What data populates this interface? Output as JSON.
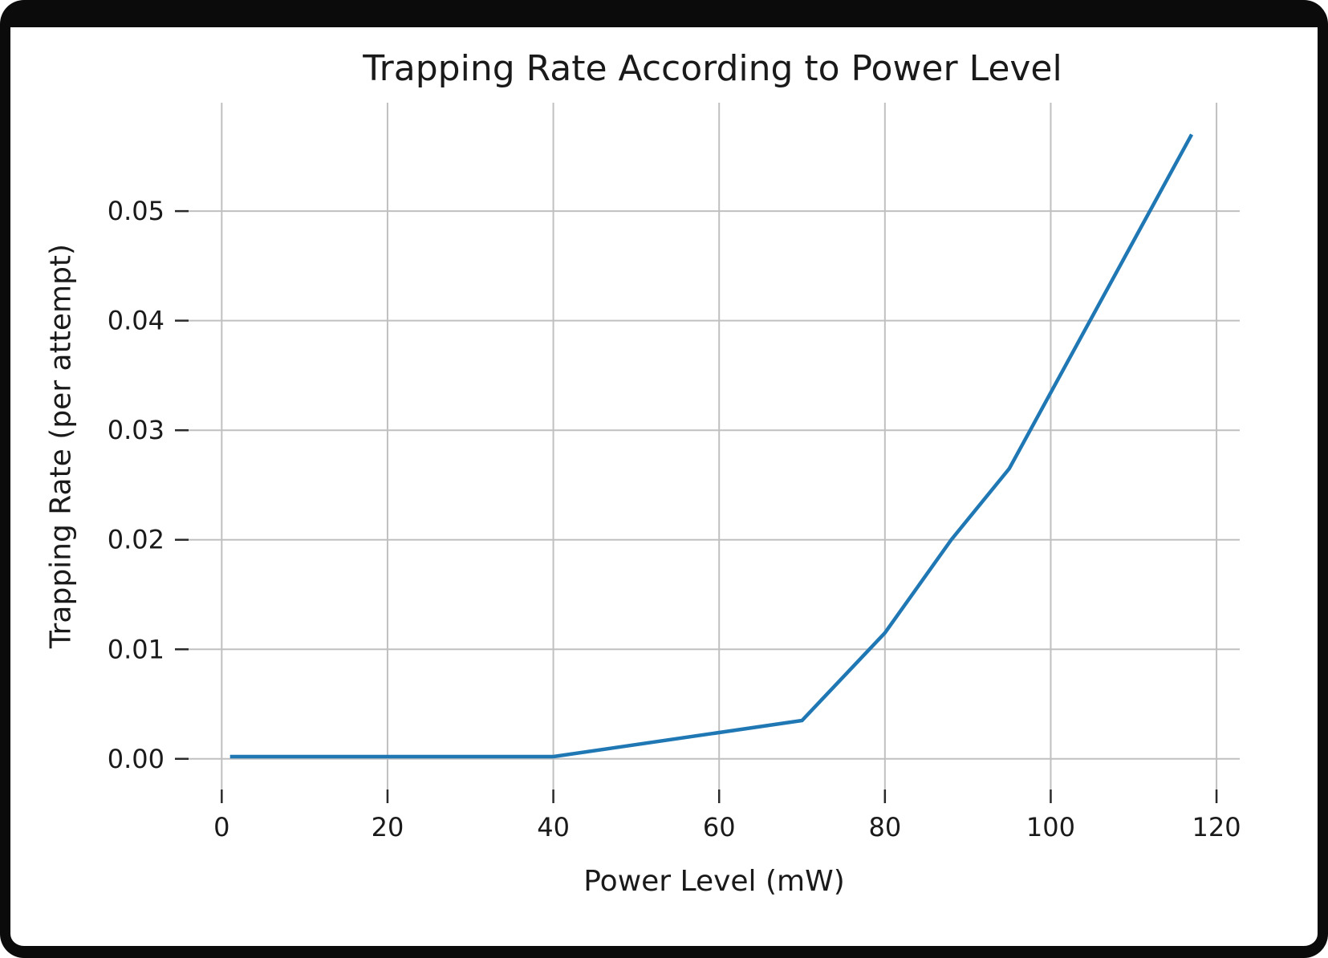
{
  "figure": {
    "background": "#ffffff",
    "border_color": "#0b0b0b"
  },
  "chart_data": {
    "type": "line",
    "title": "Trapping Rate According to Power Level",
    "xlabel": "Power Level (mW)",
    "ylabel": "Trapping Rate (per attempt)",
    "x_tick_labels": [
      "0",
      "20",
      "40",
      "60",
      "80",
      "100",
      "120"
    ],
    "x_ticks": [
      0,
      20,
      40,
      60,
      80,
      100,
      120
    ],
    "y_tick_labels": [
      "0.00",
      "0.01",
      "0.02",
      "0.03",
      "0.04",
      "0.05"
    ],
    "y_ticks": [
      0.0,
      0.01,
      0.02,
      0.03,
      0.04,
      0.05
    ],
    "xlim": [
      -4.0,
      122.8
    ],
    "ylim": [
      -0.0028,
      0.0599
    ],
    "grid": true,
    "grid_color": "#c0c0c0",
    "tick_color": "#2a2a2a",
    "legend_position": "none",
    "series": [
      {
        "name": "trapping_rate",
        "color": "#1f77b4",
        "line_width": 4.5,
        "points": [
          [
            1,
            0.0002
          ],
          [
            20,
            0.0002
          ],
          [
            40,
            0.0002
          ],
          [
            70,
            0.0035
          ],
          [
            80,
            0.0115
          ],
          [
            88,
            0.02
          ],
          [
            95,
            0.0265
          ],
          [
            117,
            0.057
          ]
        ]
      }
    ]
  }
}
